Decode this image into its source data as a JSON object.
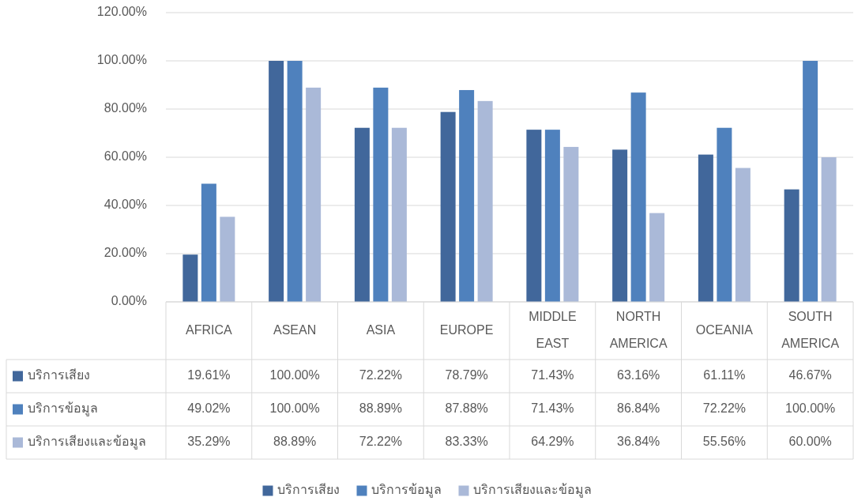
{
  "chart_data": {
    "type": "bar",
    "categories": [
      "AFRICA",
      "ASEAN",
      "ASIA",
      "EUROPE",
      "MIDDLE EAST",
      "NORTH AMERICA",
      "OCEANIA",
      "SOUTH AMERICA"
    ],
    "series": [
      {
        "name": "บริการเสียง",
        "color": "#41679b",
        "values": [
          19.61,
          100,
          72.22,
          78.79,
          71.43,
          63.16,
          61.11,
          46.67
        ],
        "value_labels": [
          "19.61%",
          "100.00%",
          "72.22%",
          "78.79%",
          "71.43%",
          "63.16%",
          "61.11%",
          "46.67%"
        ]
      },
      {
        "name": "บริการข้อมูล",
        "color": "#4f81bd",
        "values": [
          49.02,
          100,
          88.89,
          87.88,
          71.43,
          86.84,
          72.22,
          100
        ],
        "value_labels": [
          "49.02%",
          "100.00%",
          "88.89%",
          "87.88%",
          "71.43%",
          "86.84%",
          "72.22%",
          "100.00%"
        ]
      },
      {
        "name": "บริการเสียงและข้อมูล",
        "color": "#aab9d8",
        "values": [
          35.29,
          88.89,
          72.22,
          83.33,
          64.29,
          36.84,
          55.56,
          60
        ],
        "value_labels": [
          "35.29%",
          "88.89%",
          "72.22%",
          "83.33%",
          "64.29%",
          "36.84%",
          "55.56%",
          "60.00%"
        ]
      }
    ],
    "ylim": [
      0,
      120
    ],
    "yticks": [
      {
        "value": 0,
        "label": "0.00%"
      },
      {
        "value": 20,
        "label": "20.00%"
      },
      {
        "value": 40,
        "label": "40.00%"
      },
      {
        "value": 60,
        "label": "60.00%"
      },
      {
        "value": 80,
        "label": "80.00%"
      },
      {
        "value": 100,
        "label": "100.00%"
      },
      {
        "value": 120,
        "label": "120.00%"
      }
    ],
    "grid": "y",
    "legend": "bottom"
  }
}
